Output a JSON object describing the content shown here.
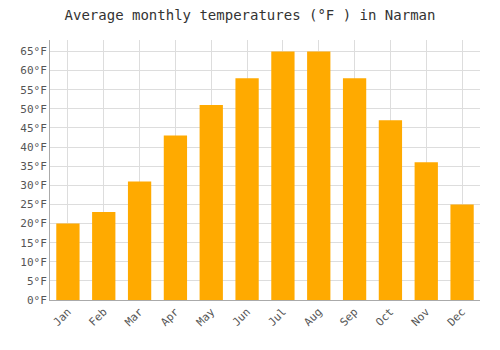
{
  "chart_data": {
    "type": "bar",
    "title": "Average monthly temperatures (°F ) in Narman",
    "categories": [
      "Jan",
      "Feb",
      "Mar",
      "Apr",
      "May",
      "Jun",
      "Jul",
      "Aug",
      "Sep",
      "Oct",
      "Nov",
      "Dec"
    ],
    "values": [
      20,
      23,
      31,
      43,
      51,
      58,
      65,
      65,
      58,
      47,
      36,
      25
    ],
    "color": "#FFAA00",
    "ylim": [
      0,
      68
    ],
    "yticks": [
      {
        "value": 0,
        "label": "0°F"
      },
      {
        "value": 5,
        "label": "5°F"
      },
      {
        "value": 10,
        "label": "10°F"
      },
      {
        "value": 15,
        "label": "15°F"
      },
      {
        "value": 20,
        "label": "20°F"
      },
      {
        "value": 25,
        "label": "25°F"
      },
      {
        "value": 30,
        "label": "30°F"
      },
      {
        "value": 35,
        "label": "35°F"
      },
      {
        "value": 40,
        "label": "40°F"
      },
      {
        "value": 45,
        "label": "45°F"
      },
      {
        "value": 50,
        "label": "50°F"
      },
      {
        "value": 55,
        "label": "55°F"
      },
      {
        "value": 60,
        "label": "60°F"
      },
      {
        "value": 65,
        "label": "65°F"
      }
    ],
    "grid": true
  }
}
